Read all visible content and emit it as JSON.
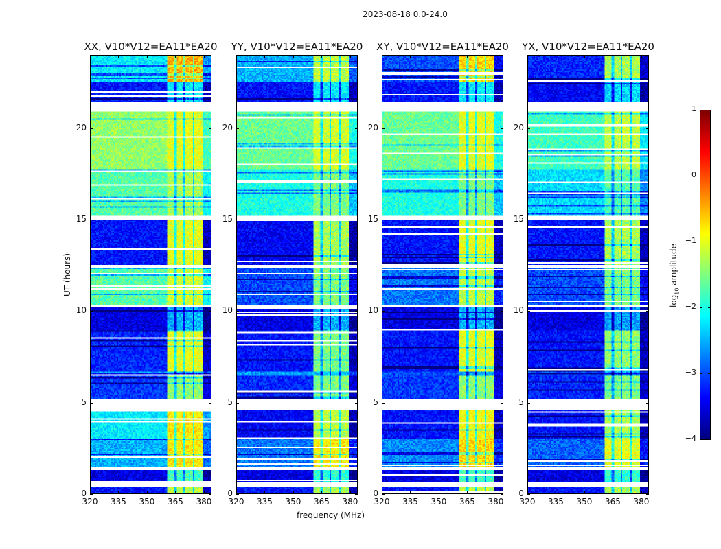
{
  "chart_data": {
    "type": "heatmap",
    "suptitle": "2023-08-18 0.0-24.0",
    "xlabel": "frequency (MHz)",
    "ylabel": "UT (hours)",
    "xlim": [
      320,
      384
    ],
    "ylim": [
      0,
      24
    ],
    "xticks": [
      "320",
      "335",
      "350",
      "365",
      "380"
    ],
    "xtick_values": [
      320,
      335,
      350,
      365,
      380
    ],
    "yticks": [
      "0",
      "5",
      "10",
      "15",
      "20"
    ],
    "ytick_values": [
      0,
      5,
      10,
      15,
      20
    ],
    "bright_band_mhz": [
      360.5,
      380
    ],
    "band_dark_stripes_mhz": [
      365,
      370,
      375
    ],
    "colorbar": {
      "label_main": "log",
      "label_sub": "10",
      "label_rest": " amplitude",
      "colormap": "jet",
      "range": [
        -4,
        1
      ],
      "ticks": [
        "1",
        "0",
        "−1",
        "−2",
        "−3",
        "−4"
      ],
      "tick_values": [
        1,
        0,
        -1,
        -2,
        -3,
        -4
      ]
    },
    "panels": [
      {
        "title": "XX, V10*V12=EA11*EA20",
        "pol": "XX"
      },
      {
        "title": "YY, V10*V12=EA11*EA20",
        "pol": "YY"
      },
      {
        "title": "XY, V10*V12=EA11*EA20",
        "pol": "XY"
      },
      {
        "title": "YX, V10*V12=EA11*EA20",
        "pol": "YX"
      }
    ],
    "segments_note": "time segments [t_start_h, t_end_h]; levels per panel [background_log10, in_band_log10]; null = no data",
    "segments": [
      {
        "t": [
          22.6,
          24
        ],
        "levels": [
          [
            -2.2,
            -0.5
          ],
          [
            -2.5,
            -1.2
          ],
          [
            -3.0,
            -0.7
          ],
          [
            -3.2,
            -1.3
          ]
        ]
      },
      {
        "t": [
          21.45,
          22.6
        ],
        "levels": [
          [
            -3.3,
            -2.2
          ],
          [
            -3.3,
            -2.2
          ],
          [
            -3.3,
            -2.2
          ],
          [
            -3.4,
            -2.3
          ]
        ]
      },
      {
        "t": [
          20.96,
          21.45
        ],
        "levels": null
      },
      {
        "t": [
          17.8,
          20.96
        ],
        "levels": [
          [
            -1.4,
            -1.0
          ],
          [
            -1.6,
            -1.1
          ],
          [
            -1.6,
            -1.0
          ],
          [
            -1.8,
            -1.2
          ]
        ]
      },
      {
        "t": [
          15.2,
          17.8
        ],
        "levels": [
          [
            -1.7,
            -1.3
          ],
          [
            -2.0,
            -1.5
          ],
          [
            -2.0,
            -1.5
          ],
          [
            -2.3,
            -1.7
          ]
        ]
      },
      {
        "t": [
          15.0,
          15.2
        ],
        "levels": null
      },
      {
        "t": [
          12.5,
          15.0
        ],
        "levels": [
          [
            -3.3,
            -1.0
          ],
          [
            -3.4,
            -1.3
          ],
          [
            -3.3,
            -1.0
          ],
          [
            -3.3,
            -1.3
          ]
        ]
      },
      {
        "t": [
          12.35,
          12.5
        ],
        "levels": null
      },
      {
        "t": [
          10.35,
          12.35
        ],
        "levels": [
          [
            -1.7,
            -1.1
          ],
          [
            -3.0,
            -1.5
          ],
          [
            -2.8,
            -1.2
          ],
          [
            -3.0,
            -1.5
          ]
        ]
      },
      {
        "t": [
          10.2,
          10.35
        ],
        "levels": null
      },
      {
        "t": [
          8.9,
          10.2
        ],
        "levels": [
          [
            -3.5,
            -2.5
          ],
          [
            -3.5,
            -2.5
          ],
          [
            -3.5,
            -2.5
          ],
          [
            -3.5,
            -2.6
          ]
        ]
      },
      {
        "t": [
          6.7,
          8.9
        ],
        "levels": [
          [
            -3.2,
            -1.0
          ],
          [
            -3.3,
            -1.5
          ],
          [
            -3.3,
            -1.0
          ],
          [
            -3.3,
            -1.4
          ]
        ]
      },
      {
        "t": [
          6.45,
          6.7
        ],
        "levels": [
          [
            -2.6,
            -2.4
          ],
          [
            -2.6,
            -2.4
          ],
          [
            -3.0,
            -2.6
          ],
          [
            -3.0,
            -2.6
          ]
        ]
      },
      {
        "t": [
          5.2,
          6.45
        ],
        "levels": [
          [
            -3.1,
            -1.4
          ],
          [
            -3.2,
            -1.5
          ],
          [
            -3.1,
            -1.4
          ],
          [
            -3.2,
            -1.5
          ]
        ]
      },
      {
        "t": [
          4.6,
          5.2
        ],
        "levels": null
      },
      {
        "t": [
          3.0,
          4.6
        ],
        "levels": [
          [
            -2.2,
            -0.8
          ],
          [
            -3.4,
            -1.2
          ],
          [
            -3.3,
            -0.9
          ],
          [
            -3.3,
            -1.3
          ]
        ]
      },
      {
        "t": [
          1.45,
          3.0
        ],
        "levels": [
          [
            -2.5,
            -0.8
          ],
          [
            -2.8,
            -0.8
          ],
          [
            -2.7,
            -0.7
          ],
          [
            -2.9,
            -1.0
          ]
        ]
      },
      {
        "t": [
          1.3,
          1.45
        ],
        "levels": null
      },
      {
        "t": [
          0.6,
          1.3
        ],
        "levels": [
          [
            -3.5,
            -1.8
          ],
          [
            -3.5,
            -1.9
          ],
          [
            -3.5,
            -1.8
          ],
          [
            -3.5,
            -1.9
          ]
        ]
      },
      {
        "t": [
          0.4,
          0.6
        ],
        "levels": null
      },
      {
        "t": [
          0,
          0.4
        ],
        "levels": [
          [
            -3.3,
            -1.2
          ],
          [
            -3.3,
            -1.3
          ],
          [
            -3.3,
            -1.2
          ],
          [
            -3.3,
            -1.3
          ]
        ]
      }
    ]
  }
}
